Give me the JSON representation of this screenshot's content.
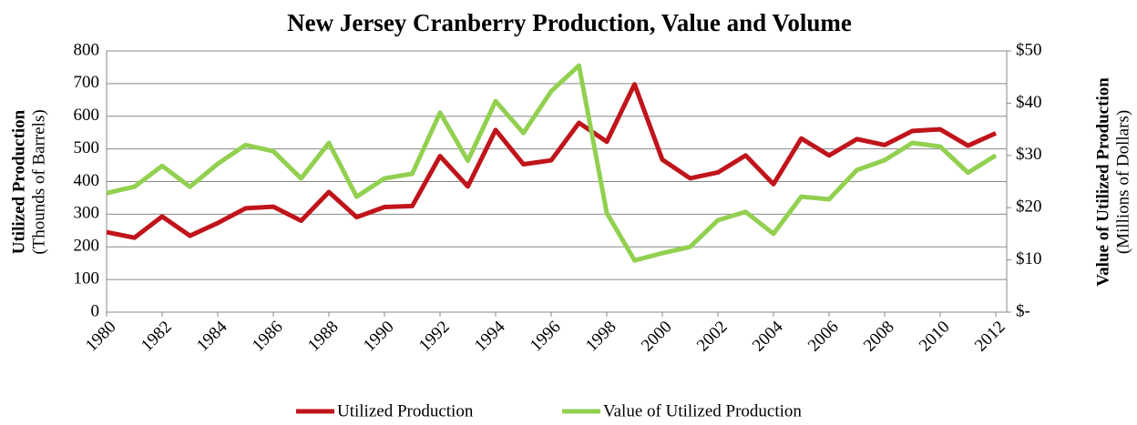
{
  "chart_data": {
    "type": "line",
    "title": "New Jersey Cranberry Production, Value and Volume",
    "ylabel": "Utilized Production",
    "ylabel_sub": "(Thounds of Barrels)",
    "y2label": "Value of Utilized Production",
    "y2label_sub": "(Millions of Dollars)",
    "x": [
      1980,
      1981,
      1982,
      1983,
      1984,
      1985,
      1986,
      1987,
      1988,
      1989,
      1990,
      1991,
      1992,
      1993,
      1994,
      1995,
      1996,
      1997,
      1998,
      1999,
      2000,
      2001,
      2002,
      2003,
      2004,
      2005,
      2006,
      2007,
      2008,
      2009,
      2010,
      2011,
      2012
    ],
    "xlim": [
      1980,
      2012
    ],
    "xticks": [
      1980,
      1982,
      1984,
      1986,
      1988,
      1990,
      1992,
      1994,
      1996,
      1998,
      2000,
      2002,
      2004,
      2006,
      2008,
      2010,
      2012
    ],
    "ylim": [
      0,
      800
    ],
    "yticks": [
      0,
      100,
      200,
      300,
      400,
      500,
      600,
      700,
      800
    ],
    "y2lim": [
      0,
      50
    ],
    "y2ticks": [
      {
        "value": 0,
        "label": "$-"
      },
      {
        "value": 10,
        "label": "$10"
      },
      {
        "value": 20,
        "label": "$20"
      },
      {
        "value": 30,
        "label": "$30"
      },
      {
        "value": 40,
        "label": "$40"
      },
      {
        "value": 50,
        "label": "$50"
      }
    ],
    "grid": true,
    "legend": "bottom",
    "series": [
      {
        "name": "Utilized Production",
        "color": "#c0141b",
        "values": [
          245,
          228,
          293,
          234,
          273,
          318,
          323,
          280,
          368,
          291,
          322,
          325,
          478,
          385,
          558,
          453,
          465,
          580,
          522,
          698,
          467,
          410,
          428,
          480,
          392,
          532,
          480,
          530,
          512,
          555,
          560,
          510,
          548
        ]
      },
      {
        "name": "Value of Utilized Production",
        "color": "#92d050",
        "axis": "y2",
        "values": [
          22.8,
          24,
          28,
          24,
          28.4,
          32,
          30.8,
          25.6,
          32.4,
          22.1,
          25.6,
          26.5,
          38.2,
          29,
          40.4,
          34.3,
          42.3,
          47.2,
          19,
          9.9,
          11.3,
          12.5,
          17.6,
          19.2,
          15,
          22.1,
          21.6,
          27.2,
          29.1,
          32.4,
          31.7,
          26.7,
          30
        ]
      }
    ]
  }
}
